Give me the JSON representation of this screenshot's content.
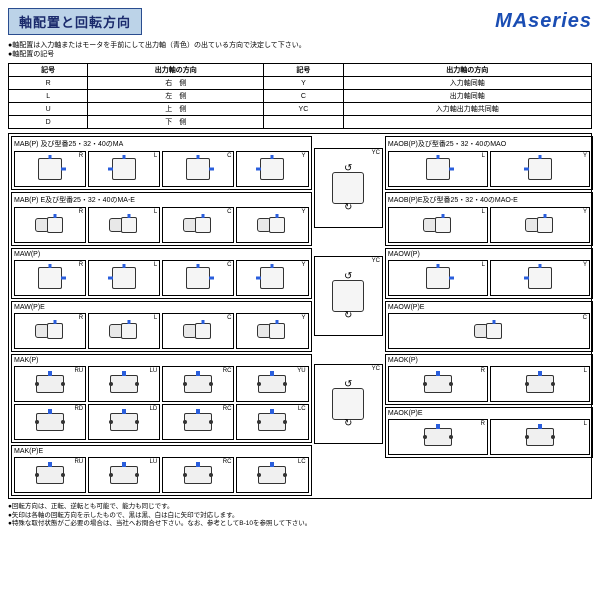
{
  "header": {
    "title": "軸配置と回転方向",
    "brand": "MAseries"
  },
  "intro": {
    "line1": "●軸配置は入力軸またはモータを手前にして出力軸（青色）の出ている方向で決定して下さい。",
    "line2": "●軸配置の記号"
  },
  "code_table": {
    "headers_left": [
      "記号",
      "出力軸の方向"
    ],
    "headers_right": [
      "記号",
      "出力軸の方向"
    ],
    "rows_left": [
      [
        "R",
        "右　側"
      ],
      [
        "L",
        "左　側"
      ],
      [
        "U",
        "上　側"
      ],
      [
        "D",
        "下　側"
      ]
    ],
    "rows_right": [
      [
        "Y",
        "入力軸同軸"
      ],
      [
        "C",
        "出力軸同軸"
      ],
      [
        "YC",
        "入力軸出力軸共同軸"
      ],
      [
        "",
        ""
      ]
    ]
  },
  "sections": {
    "left": [
      {
        "title": "MAB(P) 及び型番25・32・40のMA",
        "cols": 4,
        "rows": 1,
        "labels": [
          "R",
          "L",
          "C",
          "Y"
        ],
        "dev": "box"
      },
      {
        "title": "MAB(P) E及び型番25・32・40のMA-E",
        "cols": 4,
        "rows": 1,
        "labels": [
          "R",
          "L",
          "C",
          "Y"
        ],
        "dev": "motor"
      },
      {
        "title": "MAW(P)",
        "cols": 4,
        "rows": 1,
        "labels": [
          "R",
          "L",
          "C",
          "Y"
        ],
        "dev": "box"
      },
      {
        "title": "MAW(P)E",
        "cols": 4,
        "rows": 1,
        "labels": [
          "R",
          "L",
          "C",
          "Y"
        ],
        "dev": "motor"
      },
      {
        "title": "MAK(P)",
        "cols": 4,
        "rows": 2,
        "labels": [
          "RU",
          "LU",
          "RC",
          "YU",
          "RD",
          "LD",
          "RC",
          "LC"
        ],
        "dev": "top"
      },
      {
        "title": "MAK(P)E",
        "cols": 4,
        "rows": 1,
        "labels": [
          "RU",
          "LU",
          "RC",
          "LC"
        ],
        "dev": "top"
      }
    ],
    "mid": [
      {
        "label": "YC"
      },
      {
        "label": "YC"
      },
      {
        "label": "YC"
      }
    ],
    "right": [
      {
        "title": "MAOB(P)及び型番25・32・40のMAO",
        "cols": 2,
        "rows": 1,
        "labels": [
          "L",
          "Y"
        ],
        "dev": "box"
      },
      {
        "title": "MAOB(P)E及び型番25・32・40のMAO-E",
        "cols": 2,
        "rows": 1,
        "labels": [
          "L",
          "Y"
        ],
        "dev": "motor"
      },
      {
        "title": "MAOW(P)",
        "cols": 2,
        "rows": 1,
        "labels": [
          "L",
          "Y"
        ],
        "dev": "box"
      },
      {
        "title": "MAOW(P)E",
        "cols": 1,
        "rows": 1,
        "labels": [
          "C"
        ],
        "dev": "motor"
      },
      {
        "title": "MAOK(P)",
        "cols": 2,
        "rows": 1,
        "labels": [
          "R",
          "L"
        ],
        "dev": "top"
      },
      {
        "title": "MAOK(P)E",
        "cols": 2,
        "rows": 1,
        "labels": [
          "R",
          "L"
        ],
        "dev": "top"
      }
    ]
  },
  "footnotes": {
    "f1": "●回転方向は、正転、逆転とも可能で、能力も同じです。",
    "f2": "●矢印は各軸の回転方向を示したもので、黒は黒、白は白に矢印で対応します。",
    "f3": "●特殊な取付状態がご必要の場合は、当社へお問合せ下さい。なお、参考としてB-10を参照して下さい。"
  },
  "style": {
    "accent": "#2a5edc",
    "band_bg": "#bcd3e8",
    "band_border": "#2a4d8f",
    "brand_color": "#1a4db3"
  }
}
